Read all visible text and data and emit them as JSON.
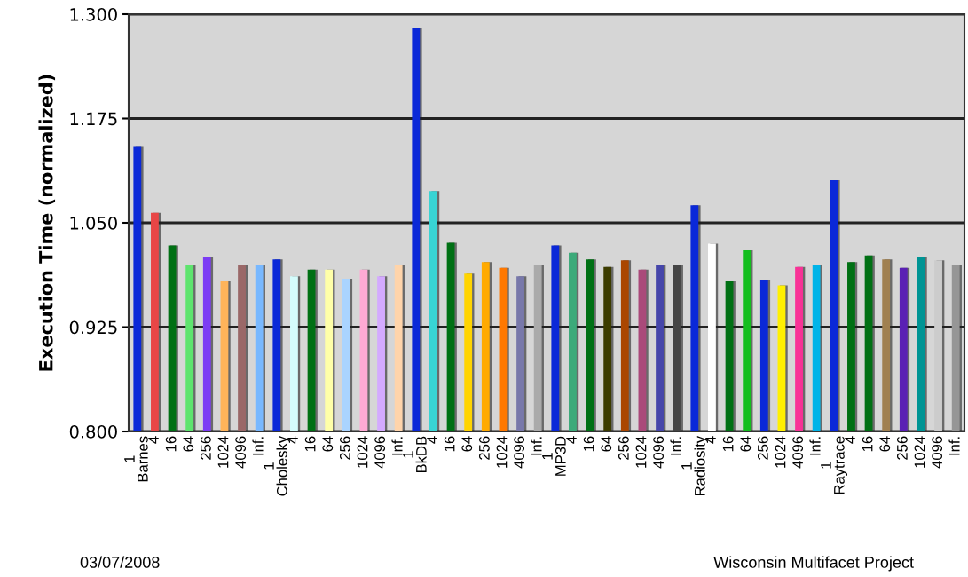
{
  "chart_data": {
    "type": "bar",
    "categories": [
      "1\nBarnes",
      "4",
      "16",
      "64",
      "256",
      "1024",
      "4096",
      "Inf.",
      "1\nCholesky",
      "4",
      "16",
      "64",
      "256",
      "1024",
      "4096",
      "Inf.",
      "1\nBkDB",
      "4",
      "16",
      "64",
      "256",
      "1024",
      "4096",
      "Inf.",
      "1\nMP3D",
      "4",
      "16",
      "64",
      "256",
      "1024",
      "4096",
      "Inf.",
      "1\nRadiosity",
      "4",
      "16",
      "64",
      "256",
      "1024",
      "4096",
      "Inf.",
      "1\nRaytrace",
      "4",
      "16",
      "64",
      "256",
      "1024",
      "4096",
      "Inf."
    ],
    "values": [
      1.141,
      1.062,
      1.023,
      1.0,
      1.009,
      0.98,
      1.0,
      0.999,
      1.006,
      0.986,
      0.994,
      0.994,
      0.983,
      0.994,
      0.986,
      0.999,
      1.283,
      1.088,
      1.026,
      0.989,
      1.003,
      0.996,
      0.986,
      0.999,
      1.023,
      1.014,
      1.006,
      0.997,
      1.005,
      0.994,
      0.999,
      0.999,
      1.071,
      1.025,
      0.98,
      1.017,
      0.982,
      0.975,
      0.997,
      0.999,
      1.101,
      1.003,
      1.011,
      1.006,
      0.996,
      1.009,
      1.005,
      0.999
    ],
    "colors": [
      "#0a28d8",
      "#e84646",
      "#007014",
      "#5ee46e",
      "#7c3cf4",
      "#ffb45a",
      "#9a6868",
      "#78b8ff",
      "#0a28d8",
      "#d4fcfc",
      "#007014",
      "#ffffa8",
      "#aad4ff",
      "#ffaad4",
      "#d4aaff",
      "#ffd4aa",
      "#0a28d8",
      "#38d4d4",
      "#007014",
      "#ffd400",
      "#ffaa00",
      "#ff7800",
      "#7878aa",
      "#aaaaaa",
      "#0a28d8",
      "#3caa7a",
      "#007014",
      "#3c3c00",
      "#aa4600",
      "#aa4a7a",
      "#4646aa",
      "#464646",
      "#0a28d8",
      "#ffffff",
      "#007014",
      "#14be1e",
      "#0a28d8",
      "#fff000",
      "#f83296",
      "#00b4e8",
      "#0a28d8",
      "#007014",
      "#007014",
      "#a08050",
      "#5a20b4",
      "#009494",
      "#cccccc",
      "#969696"
    ],
    "ylabel": "Execution Time (normalized)",
    "ylim": [
      0.8,
      1.3
    ],
    "yticks": [
      {
        "value": 0.8,
        "label": "0.800"
      },
      {
        "value": 0.925,
        "label": "0.925"
      },
      {
        "value": 1.05,
        "label": "1.050"
      },
      {
        "value": 1.175,
        "label": "1.175"
      },
      {
        "value": 1.3,
        "label": "1.300"
      }
    ],
    "grid": "y",
    "annotations": [
      "03/07/2008",
      "Wisconsin Multifacet Project"
    ]
  }
}
